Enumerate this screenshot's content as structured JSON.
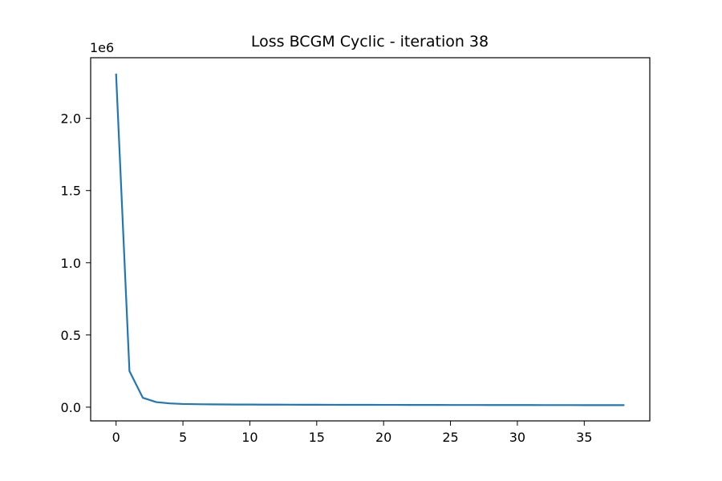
{
  "chart_data": {
    "type": "line",
    "title": "Loss BCGM Cyclic - iteration 38",
    "xlabel": "",
    "ylabel": "",
    "y_offset_label": "1e6",
    "y_scale": 1000000,
    "xlim": [
      -1.9,
      39.9
    ],
    "ylim": [
      -95000,
      2420000
    ],
    "x_ticks": [
      0,
      5,
      10,
      15,
      20,
      25,
      30,
      35
    ],
    "y_ticks": [
      0.0,
      0.5,
      1.0,
      1.5,
      2.0
    ],
    "y_tick_labels": [
      "0.0",
      "0.5",
      "1.0",
      "1.5",
      "2.0"
    ],
    "grid": false,
    "legend": false,
    "colors": {
      "line": "#1f77b4"
    },
    "series": [
      {
        "x": [
          0,
          1,
          2,
          3,
          4,
          5,
          6,
          7,
          8,
          9,
          10,
          11,
          12,
          13,
          14,
          15,
          16,
          17,
          18,
          19,
          20,
          21,
          22,
          23,
          24,
          25,
          26,
          27,
          28,
          29,
          30,
          31,
          32,
          33,
          34,
          35,
          36,
          37,
          38
        ],
        "values": [
          2310000,
          250000,
          65000,
          35000,
          26000,
          22000,
          20500,
          19500,
          18800,
          18300,
          17900,
          17600,
          17300,
          17000,
          16800,
          16600,
          16400,
          16200,
          16000,
          15900,
          15700,
          15600,
          15400,
          15300,
          15200,
          15100,
          15000,
          14900,
          14800,
          14700,
          14600,
          14500,
          14400,
          14300,
          14200,
          14100,
          14000,
          13950,
          13900
        ]
      }
    ]
  }
}
